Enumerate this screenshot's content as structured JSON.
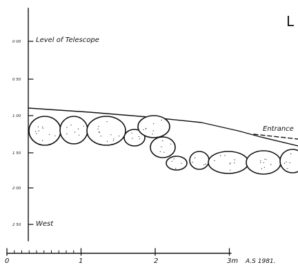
{
  "title_fragment": "L",
  "depth_scale": {
    "ticks": [
      "0 00",
      "0 50",
      "1 00",
      "1 50",
      "2 00",
      "2 50"
    ]
  },
  "labels": {
    "level_of_telescope": "Level of Telescope",
    "entrance": "Entrance",
    "west": "West"
  },
  "horizontal_scale": {
    "ticks": [
      "0",
      "1",
      "2",
      "3m"
    ],
    "credit": "A.S 1981."
  },
  "colors": {
    "ink": "#111111",
    "paper": "#ffffff"
  }
}
